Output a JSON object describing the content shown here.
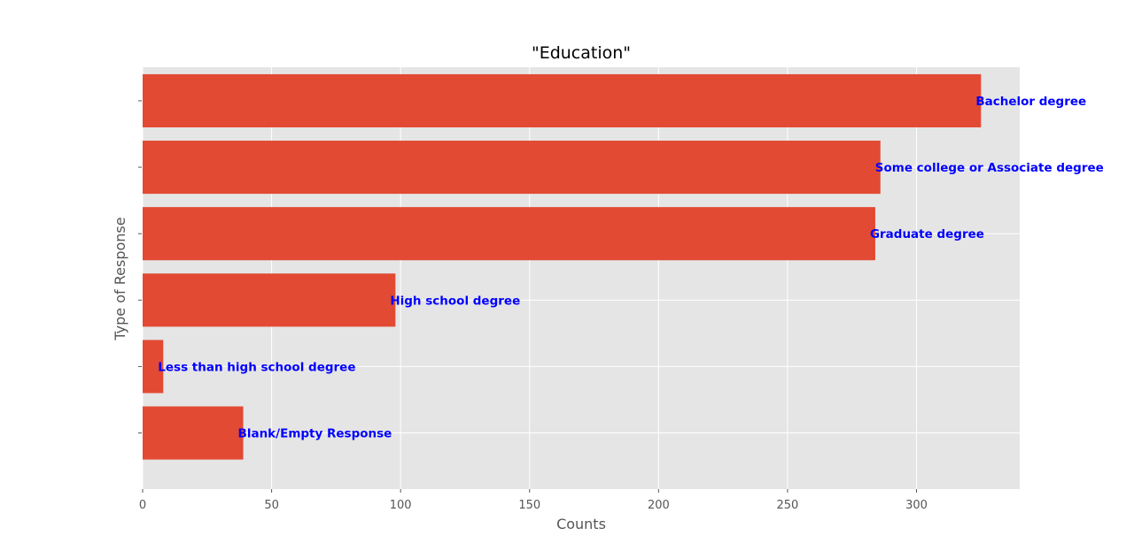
{
  "colors": {
    "plot_background": "#e5e5e5",
    "grid": "#ffffff",
    "bar": "#e24a33",
    "label_text": "#0000ff",
    "axis_text": "#555555",
    "tick": "#555555"
  },
  "chart_data": {
    "type": "bar",
    "orientation": "horizontal",
    "title": "\"Education\"",
    "xlabel": "Counts",
    "ylabel": "Type of Response",
    "xlim": [
      0,
      340
    ],
    "xticks": [
      0,
      50,
      100,
      150,
      200,
      250,
      300
    ],
    "grid": true,
    "legend": "none",
    "categories": [
      "Blank/Empty Response",
      "Less than high school degree",
      "High school degree",
      "Graduate degree",
      "Some college or Associate degree",
      "Bachelor degree"
    ],
    "values": [
      39,
      8,
      98,
      284,
      286,
      325
    ]
  }
}
